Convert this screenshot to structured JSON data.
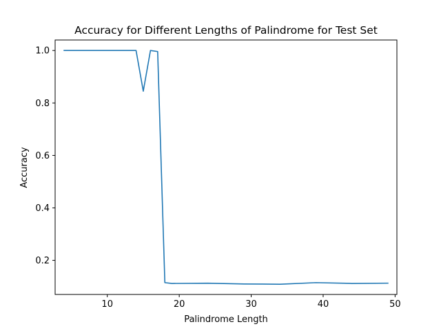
{
  "chart_data": {
    "type": "line",
    "title": "Accuracy for Different Lengths of Palindrome for Test Set",
    "xlabel": "Palindrome Length",
    "ylabel": "Accuracy",
    "xlim": [
      2.75,
      50.25
    ],
    "ylim": [
      0.07,
      1.04
    ],
    "xticks": [
      10,
      20,
      30,
      40,
      50
    ],
    "yticks": [
      0.2,
      0.4,
      0.6,
      0.8,
      1.0
    ],
    "xtick_labels": [
      "10",
      "20",
      "30",
      "40",
      "50"
    ],
    "ytick_labels": [
      "0.2",
      "0.4",
      "0.6",
      "0.8",
      "1.0"
    ],
    "grid": false,
    "series": [
      {
        "color": "#1f77b4",
        "x": [
          4,
          14,
          15,
          16,
          17,
          18,
          19,
          24,
          29,
          34,
          39,
          44,
          49
        ],
        "y": [
          1.0,
          1.0,
          0.845,
          1.0,
          0.996,
          0.115,
          0.112,
          0.113,
          0.11,
          0.109,
          0.115,
          0.112,
          0.113
        ]
      }
    ]
  }
}
